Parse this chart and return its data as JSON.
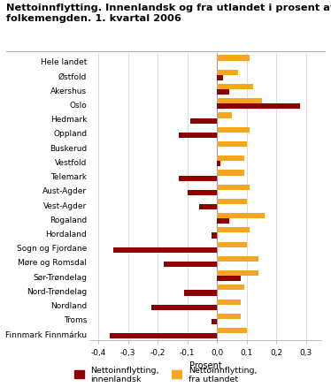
{
  "title_line1": "Nettoinnflytting. Innenlandsk og fra utlandet i prosent av",
  "title_line2": "folkemengden. 1. kvartal 2006",
  "categories": [
    "Hele landet",
    "Østfold",
    "Akershus",
    "Oslo",
    "Hedmark",
    "Oppland",
    "Buskerud",
    "Vestfold",
    "Telemark",
    "Aust-Agder",
    "Vest-Agder",
    "Rogaland",
    "Hordaland",
    "Sogn og Fjordane",
    "Møre og Romsdal",
    "Sør-Trøndelag",
    "Nord-Trøndelag",
    "Nordland",
    "Troms",
    "Finnmark Finnmárku"
  ],
  "innenlandsk": [
    0.0,
    0.02,
    0.04,
    0.28,
    -0.09,
    -0.13,
    0.0,
    0.01,
    -0.13,
    -0.1,
    -0.06,
    0.04,
    -0.02,
    -0.35,
    -0.18,
    0.08,
    -0.11,
    -0.22,
    -0.02,
    -0.36
  ],
  "fra_utlandet": [
    0.11,
    0.07,
    0.12,
    0.15,
    0.05,
    0.11,
    0.1,
    0.09,
    0.09,
    0.11,
    0.1,
    0.16,
    0.11,
    0.1,
    0.14,
    0.14,
    0.09,
    0.08,
    0.08,
    0.1
  ],
  "color_innenlandsk": "#8B0000",
  "color_fra_utlandet": "#F5A520",
  "xlabel": "Prosent",
  "xlim": [
    -0.43,
    0.35
  ],
  "xticks": [
    -0.4,
    -0.3,
    -0.2,
    -0.1,
    0.0,
    0.1,
    0.2,
    0.3
  ],
  "xtick_labels": [
    "-0,4",
    "-0,3",
    "-0,2",
    "-0,1",
    "0,0",
    "0,1",
    "0,2",
    "0,3"
  ],
  "legend_innenlandsk": "Nettoinnflytting,\ninnenlandsk",
  "legend_fra_utlandet": "Nettoinnflytting,\nfra utlandet",
  "background_color": "#ffffff",
  "grid_color": "#d0d0d0"
}
